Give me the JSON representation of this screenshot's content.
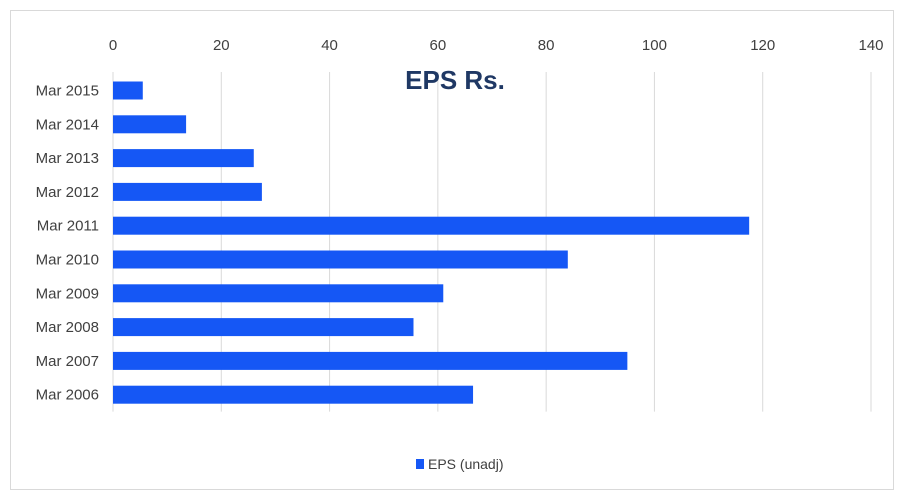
{
  "chart_data": {
    "type": "bar",
    "orientation": "horizontal",
    "title": "EPS Rs.",
    "categories": [
      "Mar 2015",
      "Mar 2014",
      "Mar 2013",
      "Mar 2012",
      "Mar 2011",
      "Mar 2010",
      "Mar 2009",
      "Mar 2008",
      "Mar 2007",
      "Mar 2006"
    ],
    "series": [
      {
        "name": "EPS (unadj)",
        "color": "#1557f5",
        "values": [
          5.5,
          13.5,
          26,
          27.5,
          117.5,
          84,
          61,
          55.5,
          95,
          66.5
        ]
      }
    ],
    "x_ticks": [
      "0",
      "20",
      "40",
      "60",
      "80",
      "100",
      "120",
      "140"
    ],
    "xlim": [
      0,
      140
    ],
    "grid": true,
    "x_axis_position": "top",
    "legend_position": "bottom",
    "colors": {
      "bar": "#1557f5",
      "title": "#1f3864",
      "grid": "#d9d9d9"
    }
  }
}
